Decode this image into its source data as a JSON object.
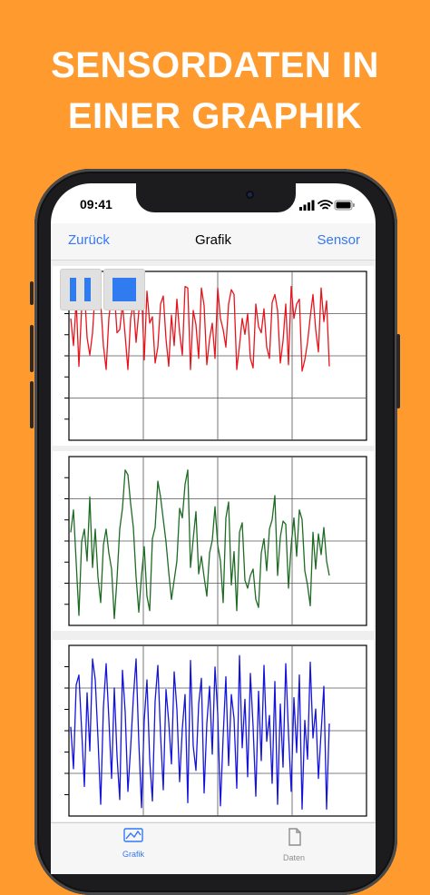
{
  "headline": [
    "SENSORDATEN IN",
    "EINER GRAPHIK"
  ],
  "status": {
    "time": "09:41"
  },
  "nav": {
    "back_label": "Zurück",
    "title": "Grafik",
    "right_label": "Sensor"
  },
  "controls": {
    "pause_icon": "pause-icon",
    "stop_icon": "stop-icon"
  },
  "tabs": [
    {
      "label": "Grafik",
      "icon": "chart-icon",
      "selected": true
    },
    {
      "label": "Daten",
      "icon": "document-icon",
      "selected": false
    }
  ],
  "colors": {
    "background": "#FF9A2E",
    "accent": "#3478F6",
    "series_x": "#E8141C",
    "series_y": "#1E6B24",
    "series_z": "#1414DC"
  },
  "chart_data": [
    {
      "type": "line",
      "grid": true,
      "series": [
        {
          "values": [
            0.74,
            0.57,
            0.85,
            0.44,
            0.8,
            0.93,
            0.62,
            0.51,
            0.65,
            0.92,
            0.91,
            0.84,
            0.57,
            0.42,
            0.74,
            0.89,
            0.91,
            0.65,
            0.67,
            0.83,
            0.63,
            0.42,
            0.74,
            0.84,
            0.59,
            0.78,
            0.92,
            0.48,
            0.91,
            0.71,
            0.75,
            0.46,
            0.56,
            0.83,
            0.88,
            0.61,
            0.44,
            0.76,
            0.57,
            0.86,
            0.65,
            0.51,
            0.94,
            0.93,
            0.42,
            0.79,
            0.7,
            0.49,
            0.93,
            0.82,
            0.45,
            0.61,
            0.71,
            0.49,
            0.93,
            0.74,
            0.67,
            0.56,
            0.83,
            0.92,
            0.89,
            0.42,
            0.57,
            0.74,
            0.64,
            0.77,
            0.49,
            0.43,
            0.83,
            0.69,
            0.65,
            0.8,
            0.56,
            0.49,
            0.84,
            0.89,
            0.79,
            0.46,
            0.6,
            0.83,
            0.45,
            0.94,
            0.74,
            0.83,
            0.86,
            0.41,
            0.48,
            0.59,
            0.75,
            0.89,
            0.67,
            0.53,
            0.93,
            0.72,
            0.85,
            0.44
          ]
        }
      ]
    },
    {
      "type": "line",
      "grid": true,
      "series": [
        {
          "values": [
            0.56,
            0.7,
            0.37,
            0.04,
            0.5,
            0.58,
            0.38,
            0.78,
            0.34,
            0.58,
            0.28,
            0.12,
            0.48,
            0.58,
            0.43,
            0.33,
            0.02,
            0.27,
            0.58,
            0.71,
            0.95,
            0.92,
            0.74,
            0.59,
            0.28,
            0.06,
            0.29,
            0.47,
            0.16,
            0.07,
            0.52,
            0.59,
            0.88,
            0.78,
            0.64,
            0.5,
            0.31,
            0.14,
            0.26,
            0.38,
            0.71,
            0.65,
            0.86,
            0.95,
            0.34,
            0.52,
            0.69,
            0.3,
            0.41,
            0.28,
            0.16,
            0.43,
            0.51,
            0.72,
            0.48,
            0.38,
            0.12,
            0.65,
            0.75,
            0.23,
            0.44,
            0.07,
            0.56,
            0.62,
            0.26,
            0.21,
            0.29,
            0.33,
            0.14,
            0.09,
            0.43,
            0.52,
            0.32,
            0.58,
            0.64,
            0.79,
            0.29,
            0.53,
            0.63,
            0.61,
            0.21,
            0.48,
            0.65,
            0.41,
            0.7,
            0.64,
            0.32,
            0.23,
            0.1,
            0.56,
            0.33,
            0.55,
            0.42,
            0.59,
            0.38,
            0.29
          ]
        }
      ]
    },
    {
      "type": "line",
      "grid": true,
      "series": [
        {
          "values": [
            0.53,
            0.27,
            0.79,
            0.85,
            0.51,
            0.16,
            0.74,
            0.38,
            0.95,
            0.82,
            0.46,
            0.05,
            0.65,
            0.92,
            0.58,
            0.21,
            0.77,
            0.35,
            0.08,
            0.88,
            0.62,
            0.13,
            0.4,
            0.71,
            0.95,
            0.44,
            0.03,
            0.57,
            0.82,
            0.33,
            0.07,
            0.69,
            0.91,
            0.48,
            0.14,
            0.76,
            0.56,
            0.3,
            0.87,
            0.64,
            0.19,
            0.52,
            0.73,
            0.06,
            0.94,
            0.41,
            0.26,
            0.67,
            0.83,
            0.12,
            0.55,
            0.78,
            0.36,
            0.9,
            0.61,
            0.04,
            0.47,
            0.84,
            0.29,
            0.73,
            0.58,
            0.15,
            0.97,
            0.4,
            0.7,
            0.22,
            0.86,
            0.53,
            0.1,
            0.75,
            0.32,
            0.91,
            0.44,
            0.6,
            0.18,
            0.81,
            0.05,
            0.67,
            0.28,
            0.92,
            0.49,
            0.13,
            0.71,
            0.37,
            0.85,
            0.02,
            0.57,
            0.33,
            0.93,
            0.46,
            0.64,
            0.21,
            0.5,
            0.78,
            0.02,
            0.55
          ]
        }
      ]
    }
  ]
}
